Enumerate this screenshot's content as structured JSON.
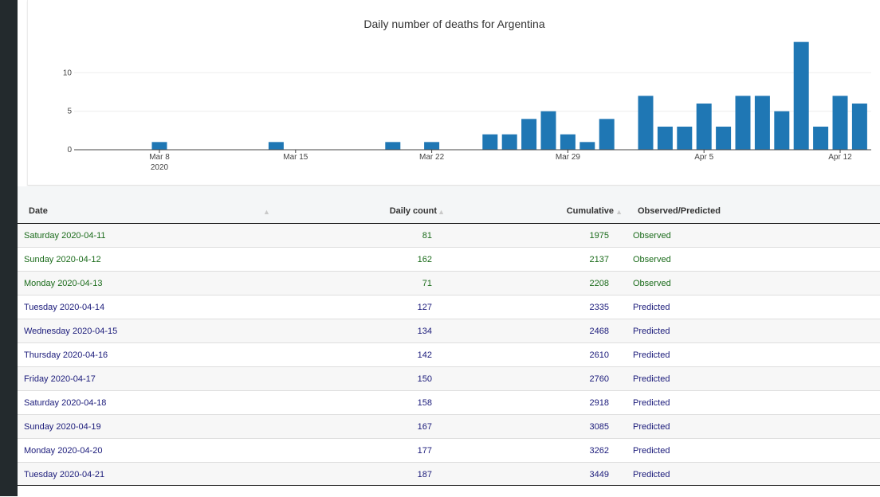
{
  "chart_data": {
    "type": "bar",
    "title": "Daily number of deaths for Argentina",
    "x_tick_labels": [
      "Mar 8",
      "Mar 15",
      "Mar 22",
      "Mar 29",
      "Apr 5",
      "Apr 12"
    ],
    "x_year_label": "2020",
    "y_ticks": [
      0,
      5,
      10
    ],
    "ylim": [
      0,
      15
    ],
    "x": [
      "2020-03-08",
      "2020-03-14",
      "2020-03-20",
      "2020-03-22",
      "2020-03-25",
      "2020-03-26",
      "2020-03-27",
      "2020-03-28",
      "2020-03-29",
      "2020-03-30",
      "2020-03-31",
      "2020-04-02",
      "2020-04-03",
      "2020-04-04",
      "2020-04-05",
      "2020-04-06",
      "2020-04-07",
      "2020-04-08",
      "2020-04-09",
      "2020-04-10",
      "2020-04-11",
      "2020-04-12",
      "2020-04-13"
    ],
    "values": [
      1,
      1,
      1,
      1,
      2,
      2,
      4,
      5,
      2,
      1,
      4,
      7,
      3,
      3,
      6,
      3,
      7,
      7,
      5,
      14,
      3,
      7,
      6
    ],
    "bar_color": "#1f77b4",
    "grid": true
  },
  "table": {
    "headers": {
      "date": "Date",
      "daily": "Daily count",
      "cumulative": "Cumulative",
      "status": "Observed/Predicted"
    },
    "rows": [
      {
        "date": "Saturday 2020-04-11",
        "daily": "81",
        "cumulative": "1975",
        "status": "Observed"
      },
      {
        "date": "Sunday 2020-04-12",
        "daily": "162",
        "cumulative": "2137",
        "status": "Observed"
      },
      {
        "date": "Monday 2020-04-13",
        "daily": "71",
        "cumulative": "2208",
        "status": "Observed"
      },
      {
        "date": "Tuesday 2020-04-14",
        "daily": "127",
        "cumulative": "2335",
        "status": "Predicted"
      },
      {
        "date": "Wednesday 2020-04-15",
        "daily": "134",
        "cumulative": "2468",
        "status": "Predicted"
      },
      {
        "date": "Thursday 2020-04-16",
        "daily": "142",
        "cumulative": "2610",
        "status": "Predicted"
      },
      {
        "date": "Friday 2020-04-17",
        "daily": "150",
        "cumulative": "2760",
        "status": "Predicted"
      },
      {
        "date": "Saturday 2020-04-18",
        "daily": "158",
        "cumulative": "2918",
        "status": "Predicted"
      },
      {
        "date": "Sunday 2020-04-19",
        "daily": "167",
        "cumulative": "3085",
        "status": "Predicted"
      },
      {
        "date": "Monday 2020-04-20",
        "daily": "177",
        "cumulative": "3262",
        "status": "Predicted"
      },
      {
        "date": "Tuesday 2020-04-21",
        "daily": "187",
        "cumulative": "3449",
        "status": "Predicted"
      }
    ]
  },
  "colors": {
    "observed": "#1a6b1a",
    "predicted": "#1a1a7a"
  }
}
